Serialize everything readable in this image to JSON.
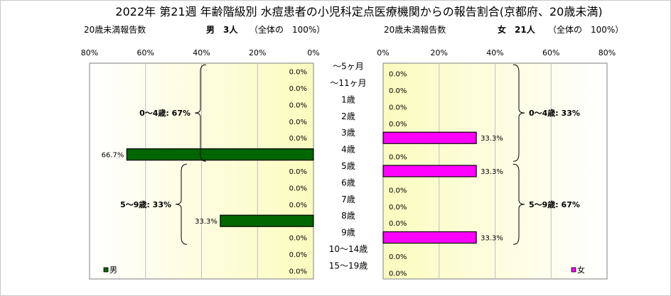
{
  "chart_data": {
    "type": "bar",
    "title": "2022年 第21週 年齢階級別 水痘患者の小児科定点医療機関からの報告割合(京都府、20歳未満)",
    "categories": [
      "～5ヶ月",
      "～11ヶ月",
      "1歳",
      "2歳",
      "3歳",
      "4歳",
      "5歳",
      "6歳",
      "7歳",
      "8歳",
      "9歳",
      "10～14歳",
      "15～19歳"
    ],
    "xlim": [
      0,
      80
    ],
    "x_ticks": [
      "0%",
      "20%",
      "40%",
      "60%",
      "80%"
    ],
    "x_ticks_reversed": [
      "80%",
      "60%",
      "40%",
      "20%",
      "0%"
    ],
    "grid": true,
    "series": [
      {
        "name": "男",
        "side": "left",
        "color": "#006600",
        "header_label": "20歳未満報告数",
        "header_count": "男　3人",
        "header_total": "（全体の　100%）",
        "values": [
          0,
          0,
          0,
          0,
          0,
          66.7,
          0,
          0,
          0,
          33.3,
          0,
          0,
          0
        ],
        "value_labels": [
          "0.0%",
          "0.0%",
          "0.0%",
          "0.0%",
          "0.0%",
          "66.7%",
          "0.0%",
          "0.0%",
          "0.0%",
          "33.3%",
          "0.0%",
          "0.0%",
          "0.0%"
        ],
        "groups": [
          {
            "label": "0～4歳: 67%",
            "from": 0,
            "to": 5
          },
          {
            "label": "5～9歳: 33%",
            "from": 6,
            "to": 10
          }
        ]
      },
      {
        "name": "女",
        "side": "right",
        "color": "#ff00ff",
        "header_label": "20歳未満報告数",
        "header_count": "女　21人",
        "header_total": "（全体の　100%）",
        "values": [
          0,
          0,
          0,
          0,
          33.3,
          0,
          33.3,
          0,
          0,
          0,
          33.3,
          0,
          0
        ],
        "value_labels": [
          "0.0%",
          "0.0%",
          "0.0%",
          "0.0%",
          "33.3%",
          "0.0%",
          "33.3%",
          "0.0%",
          "0.0%",
          "0.0%",
          "33.3%",
          "0.0%",
          "0.0%"
        ],
        "groups": [
          {
            "label": "0～4歳: 33%",
            "from": 0,
            "to": 5
          },
          {
            "label": "5～9歳: 67%",
            "from": 6,
            "to": 10
          }
        ]
      }
    ],
    "legend_placement": "bottom-left / bottom-right inside each panel"
  }
}
